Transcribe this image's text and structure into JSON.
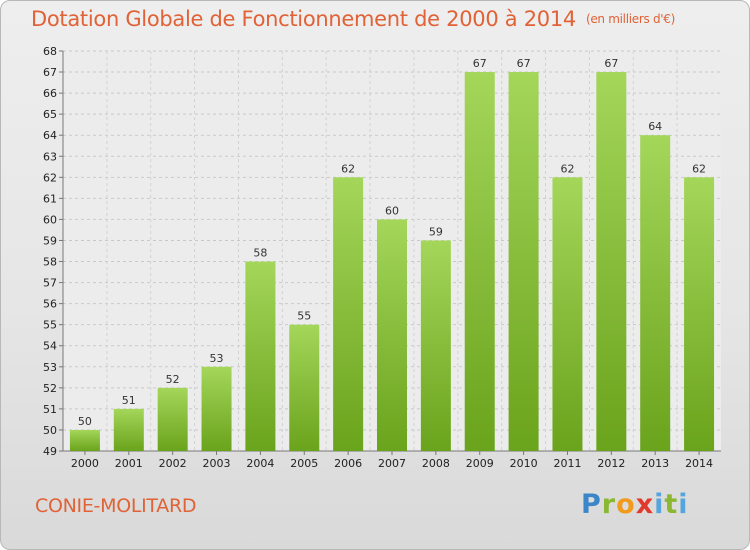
{
  "header": {
    "title": "Dotation Globale de Fonctionnement de 2000 à 2014",
    "subtitle": "(en milliers d'€)"
  },
  "footer": {
    "place": "CONIE-MOLITARD",
    "logo": "Proxiti"
  },
  "colors": {
    "bar_light": "#a4d65a",
    "bar_dark": "#6aa31c",
    "title": "#e06236"
  },
  "chart_data": {
    "type": "bar",
    "title": "Dotation Globale de Fonctionnement de 2000 à 2014",
    "subtitle": "(en milliers d'€)",
    "categories": [
      "2000",
      "2001",
      "2002",
      "2003",
      "2004",
      "2005",
      "2006",
      "2007",
      "2008",
      "2009",
      "2010",
      "2011",
      "2012",
      "2013",
      "2014"
    ],
    "values": [
      50,
      51,
      52,
      53,
      58,
      55,
      62,
      60,
      59,
      67,
      67,
      62,
      67,
      64,
      62
    ],
    "ylim": [
      49,
      68
    ],
    "yticks": [
      49,
      50,
      51,
      52,
      53,
      54,
      55,
      56,
      57,
      58,
      59,
      60,
      61,
      62,
      63,
      64,
      65,
      66,
      67,
      68
    ],
    "grid": true,
    "data_labels": true
  }
}
